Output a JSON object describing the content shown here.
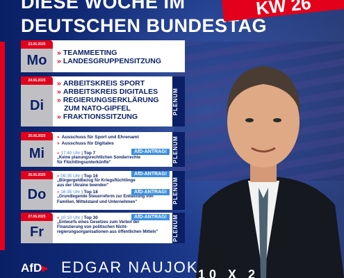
{
  "title": {
    "line1": "DIESE WOCHE IM",
    "line2": "DEUTSCHEN BUNDESTAG"
  },
  "badge": "KW 26",
  "days": [
    {
      "date": "23.06.2025",
      "abbr": "Mo",
      "items": [
        "TEAMMEETING",
        "LANDESGRUPPENSITZUNG"
      ]
    },
    {
      "date": "24.06.2025",
      "abbr": "Di",
      "plenum": "PLENUM",
      "items": [
        "ARBEITSKREIS SPORT",
        "ARBEITSKREIS DIGITALES",
        "REGIERUNGSERKLÄRUNG",
        "ZUM NATO-GIPFEL",
        "FRAKTIONSSITZUNG"
      ]
    },
    {
      "date": "25.06.2025",
      "abbr": "Mi",
      "plenum": "PLENUM",
      "items": [
        "Ausschuss für Sport und Ehrenamt",
        "Ausschuss für Digitales"
      ],
      "agenda": [
        {
          "time": "17:40 Uhr",
          "top": "Top 7",
          "tag": "AfD-ANTRAG!",
          "desc": [
            "„Keine planungsrechtlichen Sonderrechte",
            "für Flüchtlingsunterkünfte\""
          ]
        }
      ]
    },
    {
      "date": "26.06.2025",
      "abbr": "Do",
      "plenum": "PLENUM",
      "agenda": [
        {
          "time": "09:35 Uhr",
          "top": "Top 16",
          "tag": "AfD-ANTRAG!",
          "desc": [
            "„Bürgergeldbezug für Kriegsflüchtlinge",
            "aus der Ukraine beenden\""
          ]
        },
        {
          "time": "16:35 Uhr",
          "top": "Top 18",
          "tag": "AfD-ANTRAG!",
          "desc": [
            "„Grundlegende Steuerreform zur Entlastung von",
            "Familien, Mittelstand und Unternehmen\""
          ]
        }
      ]
    },
    {
      "date": "27.06.2025",
      "abbr": "Fr",
      "plenum": "PLENUM",
      "agenda": [
        {
          "time": "10:10 Uhr",
          "top": "Top 30",
          "tag": "AfD-ANTRAG!",
          "desc": [
            "„Entwurfs eines Gesetzes zum Verbot der",
            "Finanzierung von politischen Nicht-",
            "regierungsorganisationen aus öffentlichen Mitteln\""
          ]
        }
      ]
    }
  ],
  "footer": {
    "logo": "AfD",
    "name": "EDGAR NAUJOK",
    "number": "10 X 2"
  },
  "colors": {
    "red": "#e3001b",
    "navy": "#0a1f66",
    "blue": "#3d8fe0"
  }
}
